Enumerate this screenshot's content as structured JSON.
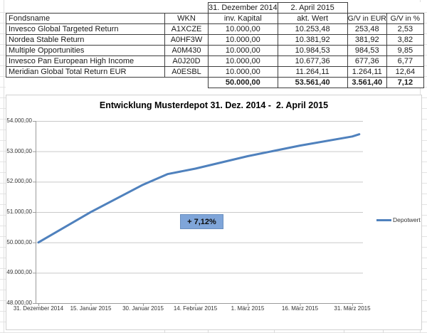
{
  "chart_data": [
    {
      "type": "table",
      "period_header_row": [
        "",
        "",
        "31. Dezember 2014",
        "2. April 2015",
        "",
        ""
      ],
      "columns": [
        "Fondsname",
        "WKN",
        "inv. Kapital",
        "akt. Wert",
        "G/V in EUR",
        "G/V in %"
      ],
      "rows": [
        [
          "Invesco Global Targeted Return",
          "A1XCZE",
          "10.000,00",
          "10.253,48",
          "253,48",
          "2,53"
        ],
        [
          "Nordea Stable Return",
          "A0HF3W",
          "10.000,00",
          "10.381,92",
          "381,92",
          "3,82"
        ],
        [
          "Multiple Opportunities",
          "A0M430",
          "10.000,00",
          "10.984,53",
          "984,53",
          "9,85"
        ],
        [
          "Invesco Pan European High Income",
          "A0J20D",
          "10.000,00",
          "10.677,36",
          "677,36",
          "6,77"
        ],
        [
          "Meridian Global Total Return EUR",
          "A0ESBL",
          "10.000,00",
          "11.264,11",
          "1.264,11",
          "12,64"
        ]
      ],
      "totals_row": [
        "",
        "",
        "50.000,00",
        "53.561,40",
        "3.561,40",
        "7,12"
      ]
    },
    {
      "type": "line",
      "title": "Entwicklung Musterdepot 31. Dez. 2014 -  2. April 2015",
      "series": [
        {
          "name": "Depotwert",
          "points": [
            {
              "date": "31. Dezember 2014",
              "day": 0,
              "value": 50000
            },
            {
              "date": "15. Januar 2015",
              "day": 15,
              "value": 51000
            },
            {
              "date": "30. Januar 2015",
              "day": 30,
              "value": 51900
            },
            {
              "date": "6. Februar 2015",
              "day": 37,
              "value": 52250
            },
            {
              "date": "14. Februar 2015",
              "day": 45,
              "value": 52430
            },
            {
              "date": "1. März 2015",
              "day": 60,
              "value": 52840
            },
            {
              "date": "16. März 2015",
              "day": 75,
              "value": 53190
            },
            {
              "date": "31. März 2015",
              "day": 90,
              "value": 53490
            },
            {
              "date": "2. April 2015",
              "day": 92,
              "value": 53561.4
            }
          ]
        }
      ],
      "x_tick_labels": [
        "31. Dezember 2014",
        "15. Januar 2015",
        "30. Januar 2015",
        "14. Februar 2015",
        "1. März 2015",
        "16. März 2015",
        "31. März 2015"
      ],
      "y_tick_labels": [
        "54.000,00",
        "53.000,00",
        "52.000,00",
        "51.000,00",
        "50.000,00",
        "49.000,00",
        "48.000,00"
      ],
      "ylim": [
        48000,
        54000
      ],
      "ytick_step": 1000,
      "xlim_days": [
        0,
        92
      ],
      "grid": true,
      "legend": {
        "label": "Depotwert",
        "position": "right"
      },
      "annotation": "+ 7,12%",
      "colors": {
        "line": "#4f81bd",
        "annotation_fill": "#7fa5d9",
        "annotation_border": "#6a8fbf",
        "grid": "#c9c9c9",
        "axis": "#9b9b9b"
      }
    }
  ]
}
